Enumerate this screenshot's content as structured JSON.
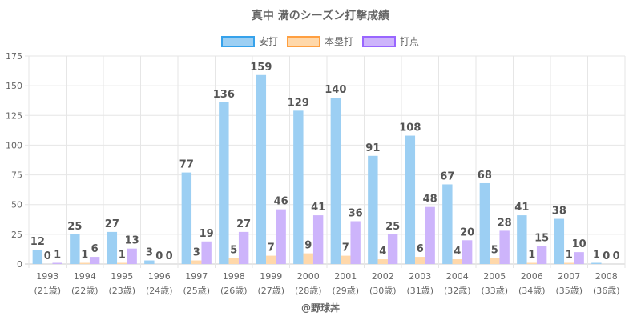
{
  "chart_data": {
    "type": "bar",
    "title": "真中 満のシーズン打撃成績",
    "credit": "@野球丼",
    "categories": [
      "1993",
      "1994",
      "1995",
      "1996",
      "1997",
      "1998",
      "1999",
      "2000",
      "2001",
      "2002",
      "2003",
      "2004",
      "2005",
      "2006",
      "2007",
      "2008"
    ],
    "ages": [
      "(21歳)",
      "(22歳)",
      "(23歳)",
      "(24歳)",
      "(25歳)",
      "(26歳)",
      "(27歳)",
      "(28歳)",
      "(29歳)",
      "(30歳)",
      "(31歳)",
      "(32歳)",
      "(33歳)",
      "(34歳)",
      "(35歳)",
      "(36歳)"
    ],
    "ylim": [
      0,
      175
    ],
    "yticks": [
      0,
      25,
      50,
      75,
      100,
      125,
      150,
      175
    ],
    "legend_position": "top-center",
    "series": [
      {
        "name": "安打",
        "color": "#9ccff3",
        "border": "#36a2eb",
        "values": [
          12,
          25,
          27,
          3,
          77,
          136,
          159,
          129,
          140,
          91,
          108,
          67,
          68,
          41,
          38,
          1
        ]
      },
      {
        "name": "本塁打",
        "color": "#ffd8aa",
        "border": "#ff9f40",
        "values": [
          0,
          1,
          1,
          0,
          3,
          5,
          7,
          9,
          7,
          4,
          6,
          4,
          5,
          1,
          1,
          0
        ]
      },
      {
        "name": "打点",
        "color": "#cdb4fb",
        "border": "#9966ff",
        "values": [
          1,
          6,
          13,
          0,
          19,
          27,
          46,
          41,
          36,
          25,
          48,
          20,
          28,
          15,
          10,
          0
        ]
      }
    ]
  }
}
